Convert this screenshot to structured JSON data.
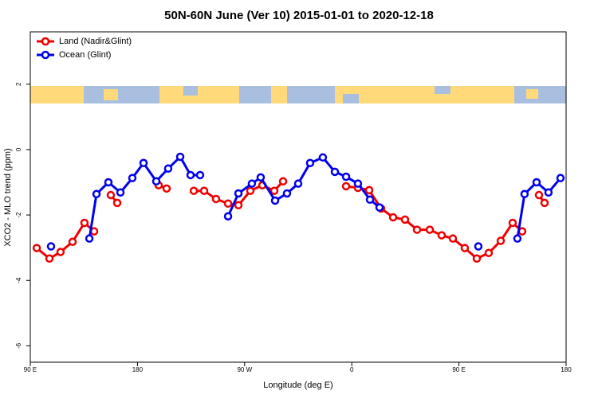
{
  "chart_data": {
    "type": "line",
    "title": "50N-60N June (Ver 10)   2015-01-01 to 2020-12-18",
    "x_label": "Longitude (deg E)",
    "y_label": "XCO2 - MLO trend (ppm)",
    "xlim": [
      90,
      540
    ],
    "ylim": [
      -6.5,
      3.6
    ],
    "xticks": [
      {
        "value": 90,
        "label": "90 E"
      },
      180,
      {
        "value": 270,
        "label": "90 W"
      },
      {
        "value": 360,
        "label": "0"
      },
      {
        "value": 450,
        "label": "90 E"
      },
      {
        "value": 540,
        "label": "180"
      }
    ],
    "yticks": [
      -6,
      -4,
      -2,
      0,
      2
    ],
    "legend": "top-left",
    "series": [
      {
        "name": "Land (Nadir&Glint)",
        "color": "#ee0000",
        "x": [
          95.4,
          106.1,
          115.4,
          125.5,
          135.5,
          143.6,
          null,
          157.6,
          163.0,
          null,
          197.8,
          204.5,
          null,
          227.3,
          236.0,
          246.0,
          256.1,
          264.8,
          274.8,
          284.9,
          294.9,
          302.3,
          null,
          355.2,
          365.2,
          374.6,
          384.6,
          394.7,
          404.7,
          414.8,
          425.5,
          435.5,
          444.9,
          454.9,
          465.0,
          475.0,
          485.1,
          495.1,
          503.1,
          null,
          517.2,
          521.9
        ],
        "values": [
          -3.01,
          -3.33,
          -3.13,
          -2.82,
          -2.24,
          -2.5,
          null,
          -1.39,
          -1.63,
          null,
          -1.09,
          -1.19,
          null,
          -1.26,
          -1.26,
          -1.51,
          -1.65,
          -1.7,
          -1.26,
          -1.09,
          -1.26,
          -0.97,
          null,
          -1.12,
          -1.17,
          -1.24,
          -1.8,
          -2.07,
          -2.14,
          -2.45,
          -2.45,
          -2.62,
          -2.72,
          -3.01,
          -3.33,
          -3.16,
          -2.79,
          -2.24,
          -2.5,
          null,
          -1.39,
          -1.63
        ]
      },
      {
        "name": "Ocean (Glint)",
        "color": "#0000ee",
        "x": [
          107.4,
          null,
          139.6,
          145.6,
          155.6,
          165.7,
          175.7,
          185.1,
          195.8,
          205.8,
          215.9,
          224.6,
          232.6,
          null,
          256.1,
          264.8,
          276.1,
          283.5,
          295.6,
          305.6,
          315.0,
          325.0,
          335.7,
          345.8,
          355.2,
          365.2,
          375.3,
          383.3,
          null,
          466.3,
          null,
          499.1,
          505.1,
          515.2,
          525.2,
          535.3
        ],
        "values": [
          -2.96,
          null,
          -2.72,
          -1.36,
          -1.0,
          -1.31,
          -0.87,
          -0.41,
          -0.97,
          -0.58,
          -0.22,
          -0.78,
          -0.78,
          null,
          -2.04,
          -1.34,
          -1.04,
          -0.85,
          -1.56,
          -1.34,
          -1.04,
          -0.41,
          -0.24,
          -0.68,
          -0.83,
          -1.04,
          -1.53,
          -1.77,
          null,
          -2.96,
          null,
          -2.72,
          -1.36,
          -1.0,
          -1.31,
          -0.87
        ]
      }
    ]
  }
}
